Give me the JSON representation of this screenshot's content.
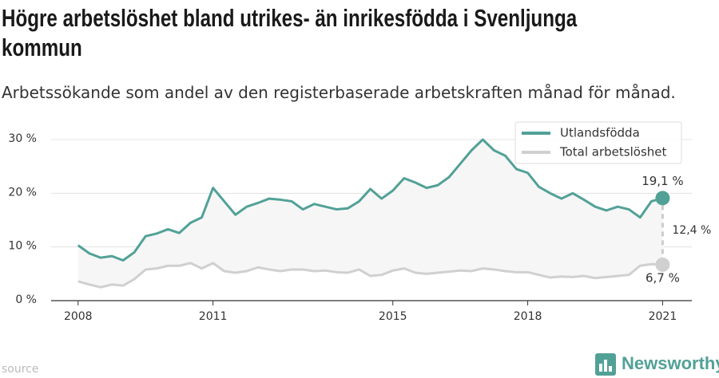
{
  "chart_data": {
    "type": "line",
    "title": "Högre arbetslöshet bland utrikes- än inrikesfödda i Svenljunga kommun",
    "subtitle": "Arbetssökande som andel av den registerbaserade arbetskraften månad för månad.",
    "source": "source",
    "brand": "Newsworthy",
    "x": [
      2008,
      2008.25,
      2008.5,
      2008.75,
      2009,
      2009.25,
      2009.5,
      2009.75,
      2010,
      2010.25,
      2010.5,
      2010.75,
      2011,
      2011.25,
      2011.5,
      2011.75,
      2012,
      2012.25,
      2012.5,
      2012.75,
      2013,
      2013.25,
      2013.5,
      2013.75,
      2014,
      2014.25,
      2014.5,
      2014.75,
      2015,
      2015.25,
      2015.5,
      2015.75,
      2016,
      2016.25,
      2016.5,
      2016.75,
      2017,
      2017.25,
      2017.5,
      2017.75,
      2018,
      2018.25,
      2018.5,
      2018.75,
      2019,
      2019.25,
      2019.5,
      2019.75,
      2020,
      2020.25,
      2020.5,
      2020.75,
      2021
    ],
    "series": [
      {
        "name": "Utlandsfödda",
        "color": "#52a197",
        "end_label": "19,1 %",
        "values": [
          10.3,
          8.8,
          8.0,
          8.3,
          7.5,
          9.0,
          12.0,
          12.5,
          13.3,
          12.6,
          14.5,
          15.5,
          21.0,
          18.5,
          16.0,
          17.5,
          18.2,
          19.0,
          18.8,
          18.5,
          17.0,
          18.0,
          17.5,
          17.0,
          17.2,
          18.5,
          20.8,
          19.0,
          20.5,
          22.8,
          22.0,
          21.0,
          21.5,
          23.0,
          25.5,
          28.0,
          30.0,
          28.0,
          27.0,
          24.5,
          23.8,
          21.2,
          20.0,
          19.0,
          20.0,
          18.8,
          17.5,
          16.8,
          17.5,
          17.0,
          15.5,
          18.5,
          19.1
        ]
      },
      {
        "name": "Total arbetslöshet",
        "color": "#d0d0d0",
        "end_label": "6,7 %",
        "values": [
          3.6,
          3.0,
          2.5,
          3.0,
          2.8,
          4.0,
          5.8,
          6.0,
          6.5,
          6.5,
          7.0,
          6.0,
          7.0,
          5.5,
          5.2,
          5.5,
          6.2,
          5.8,
          5.5,
          5.8,
          5.8,
          5.5,
          5.6,
          5.3,
          5.2,
          5.8,
          4.6,
          4.8,
          5.6,
          6.0,
          5.2,
          5.0,
          5.2,
          5.4,
          5.6,
          5.5,
          6.0,
          5.8,
          5.5,
          5.3,
          5.3,
          4.8,
          4.3,
          4.5,
          4.4,
          4.6,
          4.2,
          4.4,
          4.6,
          4.8,
          6.5,
          6.8,
          6.7
        ]
      }
    ],
    "difference": {
      "value": 12.4,
      "label": "12,4 %"
    },
    "xlim": [
      2007.4,
      2021.65
    ],
    "xticks": [
      2008,
      2011,
      2015,
      2018,
      2021
    ],
    "ylim": [
      0,
      30.3
    ],
    "yticks": [
      {
        "value": 0,
        "label": "0 %"
      },
      {
        "value": 10,
        "label": "10 %"
      },
      {
        "value": 20,
        "label": "20 %"
      },
      {
        "value": 30,
        "label": "30 %"
      }
    ],
    "grid": true,
    "legend": "top-right"
  }
}
